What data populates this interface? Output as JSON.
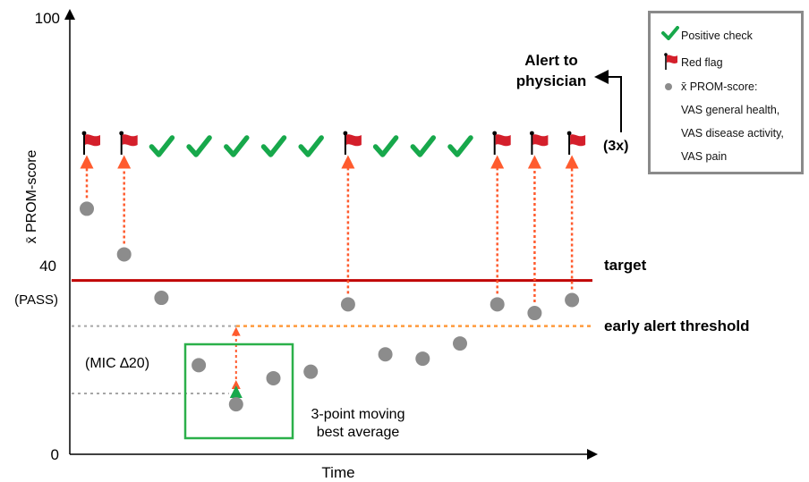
{
  "chart_data": {
    "type": "scatter",
    "ylabel": "x̄ PROM-score",
    "xlabel": "Time",
    "ylim": [
      0,
      100
    ],
    "yticks": [
      {
        "value": 100,
        "label": "100"
      },
      {
        "value": 40,
        "label": "40"
      },
      {
        "value": 0,
        "label": "0"
      }
    ],
    "ytick_note": "(PASS)",
    "x": [
      1,
      2,
      3,
      4,
      5,
      6,
      7,
      8,
      9,
      10,
      11,
      12,
      13,
      14
    ],
    "values": [
      56.5,
      46,
      36,
      20.5,
      11.5,
      17.5,
      19,
      34.5,
      23,
      22,
      25.5,
      34.5,
      32.5,
      35.5
    ],
    "status": [
      "flag",
      "flag",
      "check",
      "check",
      "check",
      "check",
      "check",
      "flag",
      "check",
      "check",
      "check",
      "flag",
      "flag",
      "flag"
    ],
    "moving_best_average": {
      "x": 5,
      "value": 14,
      "label": "3-point moving best average"
    },
    "target": {
      "value": 40,
      "label": "target"
    },
    "early_alert_threshold": {
      "value": 29.5,
      "label": "early alert threshold"
    },
    "mic_label": "(MIC ∆20)",
    "three_x_label": "(3x)",
    "alert_label": [
      "Alert to",
      "physician"
    ],
    "colors": {
      "target": "#c00000",
      "threshold": "#ff9a3c",
      "arrow": "#ff5b2e",
      "point": "#8c8c8c",
      "check": "#17a84b",
      "flag": "#d41f2b",
      "box": "#2bb04a",
      "guide": "#a6a6a6"
    },
    "legend": {
      "positive_check": "Positive check",
      "red_flag": "Red flag",
      "score_lines": [
        "x̄ PROM-score:",
        "VAS general health,",
        "VAS disease activity,",
        "VAS pain"
      ]
    }
  }
}
